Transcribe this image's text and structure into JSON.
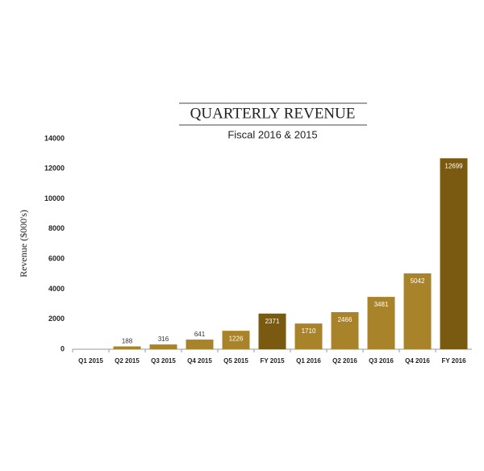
{
  "chart_data": {
    "type": "bar",
    "title": "QUARTERLY REVENUE",
    "subtitle": "Fiscal 2016 & 2015",
    "y_label": "Revenue ($000's)",
    "categories": [
      "Q1 2015",
      "Q2 2015",
      "Q3 2015",
      "Q4 2015",
      "Q5 2015",
      "FY 2015",
      "Q1 2016",
      "Q2 2016",
      "Q3 2016",
      "Q4 2016",
      "FY 2016"
    ],
    "values": [
      null,
      188,
      316,
      641,
      1226,
      2371,
      1710,
      2466,
      3481,
      5042,
      12699
    ],
    "colors": [
      "#a8832a",
      "#a8832a",
      "#a8832a",
      "#a8832a",
      "#a8832a",
      "#7a5a10",
      "#a8832a",
      "#a8832a",
      "#a8832a",
      "#a8832a",
      "#7a5a10"
    ],
    "ylim": [
      0,
      14000
    ],
    "yticks": [
      0,
      2000,
      4000,
      6000,
      8000,
      10000,
      12000,
      14000
    ],
    "grid": false
  }
}
